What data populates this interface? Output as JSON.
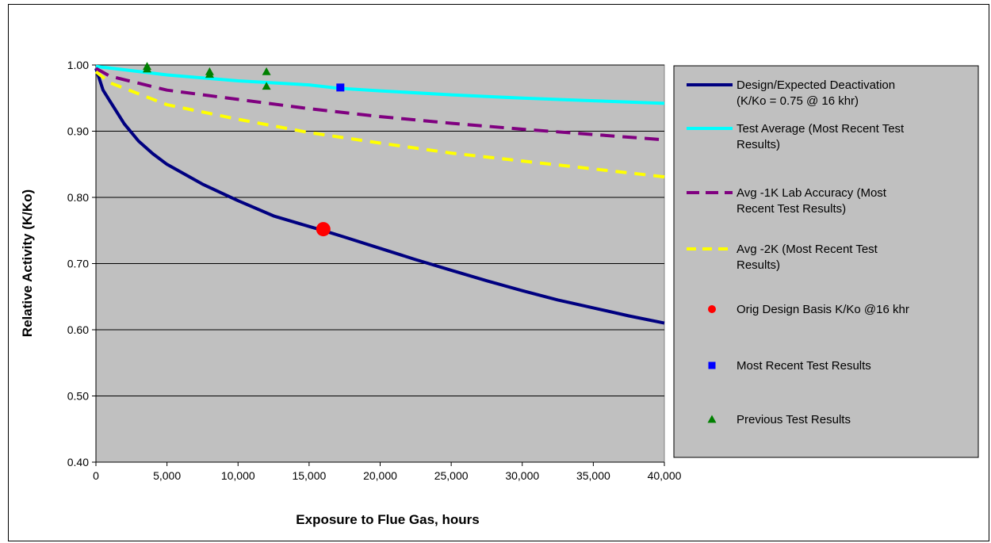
{
  "chart_data": {
    "type": "line",
    "xlabel": "Exposure to Flue Gas, hours",
    "ylabel": "Relative Activity (K/Ko)",
    "xlim": [
      0,
      40000
    ],
    "ylim": [
      0.4,
      1.0
    ],
    "x_ticks": [
      "0",
      "5,000",
      "10,000",
      "15,000",
      "20,000",
      "25,000",
      "30,000",
      "35,000",
      "40,000"
    ],
    "y_ticks": [
      "0.40",
      "0.50",
      "0.60",
      "0.70",
      "0.80",
      "0.90",
      "1.00"
    ],
    "grid": "horizontal",
    "plot_background": "#c0c0c0",
    "legend_position": "right",
    "series": [
      {
        "name": "Design/Expected Deactivation (K/Ko = 0.75 @ 16 khr)",
        "legend_lines": [
          "Design/Expected Deactivation",
          "(K/Ko = 0.75 @ 16 khr)"
        ],
        "style": "line",
        "color": "#000080",
        "dash": "solid",
        "x": [
          0,
          500,
          1000,
          2000,
          3000,
          4000,
          5000,
          7500,
          10000,
          12500,
          15000,
          16000,
          17500,
          20000,
          22500,
          25000,
          27500,
          30000,
          32500,
          35000,
          37500,
          40000
        ],
        "y": [
          0.995,
          0.962,
          0.945,
          0.911,
          0.885,
          0.866,
          0.85,
          0.82,
          0.795,
          0.772,
          0.756,
          0.75,
          0.74,
          0.723,
          0.706,
          0.69,
          0.674,
          0.659,
          0.645,
          0.633,
          0.621,
          0.61
        ]
      },
      {
        "name": "Test Average (Most Recent Test Results)",
        "legend_lines": [
          "Test Average (Most Recent Test",
          "Results)"
        ],
        "style": "line",
        "color": "#00ffff",
        "dash": "solid",
        "x": [
          0,
          5000,
          10000,
          15000,
          17000,
          20000,
          25000,
          30000,
          35000,
          40000
        ],
        "y": [
          0.998,
          0.985,
          0.976,
          0.97,
          0.965,
          0.961,
          0.955,
          0.95,
          0.946,
          0.942
        ]
      },
      {
        "name": "Avg -1K Lab Accuracy (Most Recent Test Results)",
        "legend_lines": [
          "Avg -1K Lab Accuracy (Most",
          "Recent Test Results)"
        ],
        "style": "line",
        "color": "#800080",
        "dash": "long",
        "x": [
          0,
          1000,
          5000,
          10000,
          15000,
          20000,
          25000,
          30000,
          35000,
          40000
        ],
        "y": [
          0.995,
          0.983,
          0.962,
          0.948,
          0.934,
          0.922,
          0.912,
          0.903,
          0.895,
          0.887
        ]
      },
      {
        "name": "Avg -2K (Most Recent Test Results)",
        "legend_lines": [
          "Avg -2K (Most Recent Test",
          "Results)"
        ],
        "style": "line",
        "color": "#ffff00",
        "dash": "short",
        "x": [
          0,
          1000,
          5000,
          10000,
          15000,
          20000,
          25000,
          30000,
          35000,
          40000
        ],
        "y": [
          0.99,
          0.973,
          0.94,
          0.918,
          0.898,
          0.882,
          0.867,
          0.855,
          0.843,
          0.831
        ]
      },
      {
        "name": "Orig Design Basis K/Ko @16 khr",
        "legend_lines": [
          "Orig Design Basis K/Ko @16 khr"
        ],
        "style": "marker",
        "marker": "circle",
        "color": "#ff0000",
        "x": [
          16000
        ],
        "y": [
          0.752
        ]
      },
      {
        "name": "Most Recent Test Results",
        "legend_lines": [
          "Most Recent Test Results"
        ],
        "style": "marker",
        "marker": "square",
        "color": "#0000ff",
        "x": [
          17200
        ],
        "y": [
          0.966
        ]
      },
      {
        "name": "Previous Test Results",
        "legend_lines": [
          "Previous Test Results"
        ],
        "style": "marker",
        "marker": "triangle",
        "color": "#008000",
        "x": [
          3600,
          3600,
          8000,
          8000,
          12000,
          12000
        ],
        "y": [
          0.998,
          0.994,
          0.99,
          0.986,
          0.99,
          0.968
        ]
      }
    ]
  }
}
